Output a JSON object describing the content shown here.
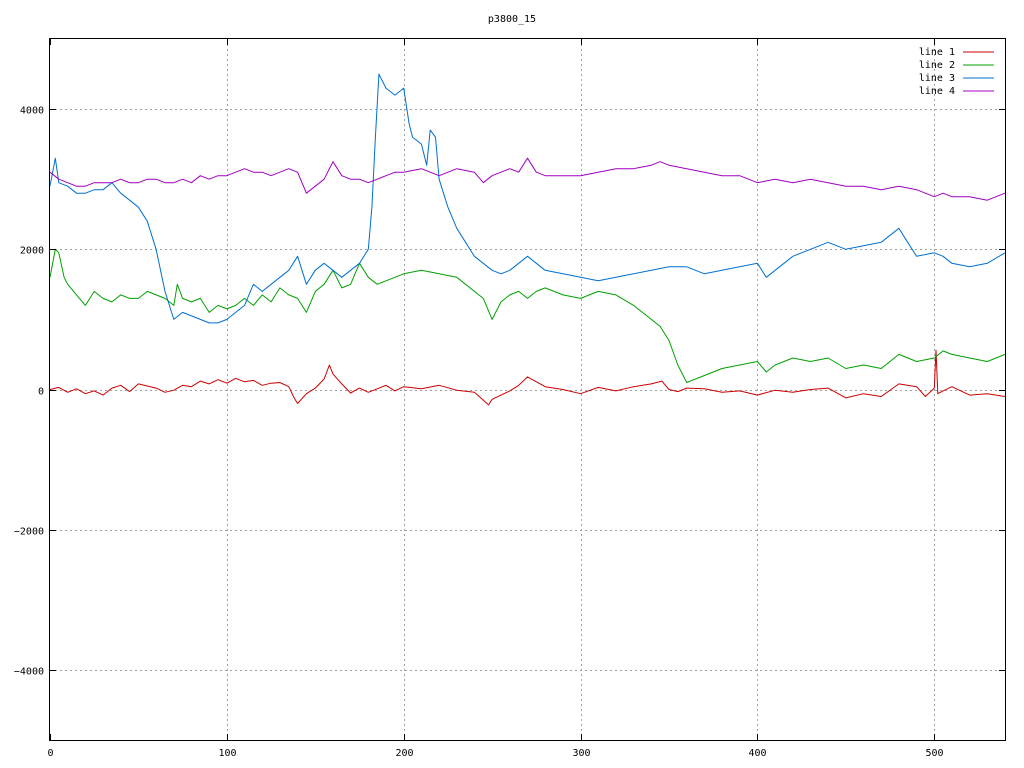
{
  "chart_data": {
    "type": "line",
    "title": "p3800_15",
    "xlabel": "",
    "ylabel": "",
    "xlim": [
      0,
      540
    ],
    "ylim": [
      -5000,
      5000
    ],
    "xticks": [
      0,
      100,
      200,
      300,
      400,
      500
    ],
    "yticks": [
      -4000,
      -2000,
      0,
      2000,
      4000
    ],
    "grid": true,
    "legend_position": "top-right",
    "series": [
      {
        "name": "line 1",
        "color": "#cc0000",
        "x": [
          0,
          5,
          10,
          15,
          20,
          25,
          30,
          35,
          40,
          45,
          50,
          55,
          60,
          65,
          70,
          75,
          80,
          85,
          90,
          95,
          100,
          105,
          110,
          115,
          120,
          125,
          130,
          135,
          138,
          140,
          145,
          150,
          155,
          158,
          160,
          165,
          170,
          175,
          180,
          185,
          190,
          195,
          200,
          210,
          220,
          230,
          240,
          248,
          250,
          260,
          265,
          270,
          280,
          290,
          300,
          310,
          320,
          330,
          340,
          346,
          350,
          355,
          360,
          370,
          380,
          390,
          400,
          410,
          420,
          430,
          440,
          450,
          460,
          470,
          480,
          490,
          495,
          500,
          501,
          502,
          505,
          510,
          520,
          530,
          540
        ],
        "y": [
          0,
          30,
          -40,
          10,
          -60,
          -20,
          -80,
          20,
          60,
          -30,
          80,
          50,
          20,
          -40,
          -10,
          60,
          40,
          120,
          80,
          140,
          90,
          160,
          110,
          130,
          60,
          90,
          100,
          40,
          -120,
          -200,
          -60,
          20,
          150,
          350,
          220,
          80,
          -50,
          20,
          -40,
          10,
          60,
          -20,
          40,
          10,
          60,
          -10,
          -40,
          -220,
          -140,
          -20,
          60,
          180,
          40,
          0,
          -60,
          30,
          -20,
          40,
          80,
          120,
          0,
          -30,
          20,
          10,
          -40,
          -20,
          -80,
          -10,
          -40,
          0,
          20,
          -120,
          -60,
          -100,
          80,
          40,
          -100,
          20,
          560,
          -60,
          -20,
          40,
          -80,
          -60,
          -100
        ]
      },
      {
        "name": "line 2",
        "color": "#00a000",
        "x": [
          0,
          3,
          5,
          8,
          10,
          15,
          20,
          25,
          30,
          35,
          40,
          45,
          50,
          55,
          60,
          65,
          70,
          72,
          75,
          80,
          85,
          90,
          95,
          100,
          105,
          110,
          115,
          120,
          125,
          130,
          135,
          140,
          145,
          150,
          155,
          160,
          165,
          170,
          175,
          180,
          185,
          190,
          195,
          200,
          210,
          220,
          230,
          240,
          245,
          250,
          255,
          260,
          265,
          270,
          275,
          280,
          290,
          300,
          310,
          320,
          330,
          340,
          345,
          350,
          355,
          360,
          370,
          380,
          390,
          400,
          405,
          410,
          420,
          430,
          440,
          450,
          460,
          470,
          480,
          490,
          500,
          505,
          510,
          520,
          530,
          540
        ],
        "y": [
          1600,
          2000,
          1950,
          1600,
          1500,
          1350,
          1200,
          1400,
          1300,
          1250,
          1350,
          1300,
          1300,
          1400,
          1350,
          1300,
          1200,
          1500,
          1300,
          1250,
          1300,
          1100,
          1200,
          1150,
          1200,
          1300,
          1200,
          1350,
          1250,
          1450,
          1350,
          1300,
          1100,
          1400,
          1500,
          1700,
          1450,
          1500,
          1800,
          1600,
          1500,
          1550,
          1600,
          1650,
          1700,
          1650,
          1600,
          1400,
          1300,
          1000,
          1250,
          1350,
          1400,
          1300,
          1400,
          1450,
          1350,
          1300,
          1400,
          1350,
          1200,
          1000,
          900,
          700,
          350,
          100,
          200,
          300,
          350,
          400,
          250,
          350,
          450,
          400,
          450,
          300,
          350,
          300,
          500,
          400,
          450,
          550,
          500,
          450,
          400,
          500
        ]
      },
      {
        "name": "line 3",
        "color": "#0070d0",
        "x": [
          0,
          3,
          5,
          10,
          15,
          20,
          25,
          30,
          35,
          40,
          45,
          50,
          55,
          60,
          65,
          70,
          75,
          80,
          85,
          90,
          95,
          100,
          105,
          110,
          115,
          120,
          125,
          130,
          135,
          140,
          145,
          150,
          155,
          160,
          165,
          170,
          175,
          180,
          182,
          184,
          186,
          190,
          195,
          200,
          203,
          205,
          210,
          213,
          215,
          218,
          220,
          225,
          230,
          235,
          240,
          245,
          250,
          255,
          260,
          265,
          270,
          280,
          290,
          300,
          310,
          320,
          330,
          340,
          350,
          360,
          370,
          380,
          390,
          400,
          405,
          410,
          420,
          430,
          440,
          450,
          460,
          470,
          475,
          480,
          485,
          490,
          500,
          505,
          510,
          520,
          530,
          540
        ],
        "y": [
          2900,
          3300,
          2950,
          2900,
          2800,
          2800,
          2850,
          2850,
          2950,
          2800,
          2700,
          2600,
          2400,
          2000,
          1400,
          1000,
          1100,
          1050,
          1000,
          950,
          950,
          1000,
          1100,
          1200,
          1500,
          1400,
          1500,
          1600,
          1700,
          1900,
          1500,
          1700,
          1800,
          1700,
          1600,
          1700,
          1800,
          2000,
          2600,
          3600,
          4500,
          4300,
          4200,
          4300,
          3800,
          3600,
          3500,
          3200,
          3700,
          3600,
          3000,
          2600,
          2300,
          2100,
          1900,
          1800,
          1700,
          1650,
          1700,
          1800,
          1900,
          1700,
          1650,
          1600,
          1550,
          1600,
          1650,
          1700,
          1750,
          1750,
          1650,
          1700,
          1750,
          1800,
          1600,
          1700,
          1900,
          2000,
          2100,
          2000,
          2050,
          2100,
          2200,
          2300,
          2100,
          1900,
          1950,
          1900,
          1800,
          1750,
          1800,
          1950
        ]
      },
      {
        "name": "line 4",
        "color": "#a000c0",
        "x": [
          0,
          5,
          10,
          15,
          20,
          25,
          30,
          35,
          40,
          45,
          50,
          55,
          60,
          65,
          70,
          75,
          80,
          85,
          90,
          95,
          100,
          105,
          110,
          115,
          120,
          125,
          130,
          135,
          140,
          145,
          150,
          155,
          160,
          165,
          170,
          175,
          180,
          185,
          190,
          195,
          200,
          210,
          220,
          230,
          240,
          245,
          250,
          255,
          260,
          265,
          270,
          275,
          280,
          290,
          300,
          310,
          320,
          330,
          340,
          345,
          350,
          360,
          370,
          380,
          390,
          400,
          410,
          420,
          430,
          440,
          450,
          460,
          470,
          480,
          490,
          500,
          505,
          510,
          520,
          530,
          540
        ],
        "y": [
          3100,
          3000,
          2950,
          2900,
          2900,
          2950,
          2950,
          2950,
          3000,
          2950,
          2950,
          3000,
          3000,
          2950,
          2950,
          3000,
          2950,
          3050,
          3000,
          3050,
          3050,
          3100,
          3150,
          3100,
          3100,
          3050,
          3100,
          3150,
          3100,
          2800,
          2900,
          3000,
          3250,
          3050,
          3000,
          3000,
          2950,
          3000,
          3050,
          3100,
          3100,
          3150,
          3050,
          3150,
          3100,
          2950,
          3050,
          3100,
          3150,
          3100,
          3300,
          3100,
          3050,
          3050,
          3050,
          3100,
          3150,
          3150,
          3200,
          3250,
          3200,
          3150,
          3100,
          3050,
          3050,
          2950,
          3000,
          2950,
          3000,
          2950,
          2900,
          2900,
          2850,
          2900,
          2850,
          2750,
          2800,
          2750,
          2750,
          2700,
          2800
        ]
      }
    ]
  }
}
